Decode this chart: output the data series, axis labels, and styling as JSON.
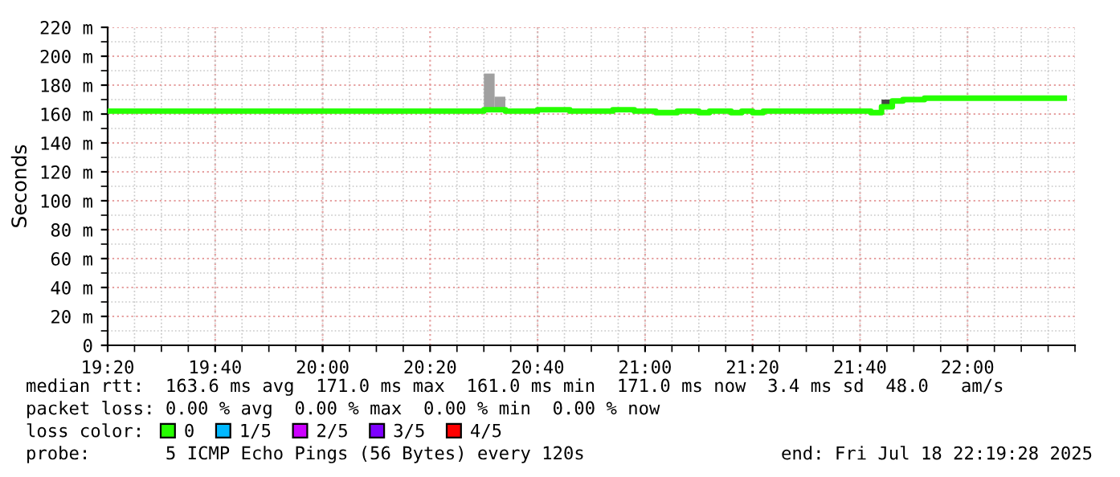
{
  "chart_data": {
    "type": "step",
    "ylabel": "Seconds",
    "legend_title": "loss color:",
    "xlim": [
      19.3333,
      22.3333
    ],
    "ylim": [
      0,
      220
    ],
    "xticks": [
      {
        "value": 19.3333,
        "label": "19:20"
      },
      {
        "value": 19.6667,
        "label": "19:40"
      },
      {
        "value": 20,
        "label": "20:00"
      },
      {
        "value": 20.3333,
        "label": "20:20"
      },
      {
        "value": 20.6667,
        "label": "20:40"
      },
      {
        "value": 21,
        "label": "21:00"
      },
      {
        "value": 21.3333,
        "label": "21:20"
      },
      {
        "value": 21.6667,
        "label": "21:40"
      },
      {
        "value": 22,
        "label": "22:00"
      }
    ],
    "yticks": [
      0,
      {
        "value": 20,
        "label": "20 m"
      },
      {
        "value": 40,
        "label": "40 m"
      },
      {
        "value": 60,
        "label": "60 m"
      },
      {
        "value": 80,
        "label": "80 m"
      },
      {
        "value": 100,
        "label": "100 m"
      },
      {
        "value": 120,
        "label": "120 m"
      },
      {
        "value": 140,
        "label": "140 m"
      },
      {
        "value": 160,
        "label": "160 m"
      },
      {
        "value": 180,
        "label": "180 m"
      },
      {
        "value": 200,
        "label": "200 m"
      },
      {
        "value": 220,
        "label": "220 m"
      }
    ],
    "grid": true,
    "legend": "bottom",
    "series": [
      {
        "type": "bar",
        "color": "#a0a0a0",
        "x": [
          20.5167,
          20.55
        ],
        "base": [
          163,
          162
        ],
        "values": [
          25,
          10
        ]
      },
      {
        "type": "bar",
        "color": "#444444",
        "x": [
          21.75
        ],
        "base": [
          165
        ],
        "values": [
          5
        ]
      },
      {
        "name": "0",
        "color": "#26ff00",
        "x": [
          19.3333,
          20.5,
          20.5667,
          20.6667,
          20.7667,
          20.9,
          20.9667,
          21.0333,
          21.1,
          21.1667,
          21.2,
          21.2667,
          21.3,
          21.3333,
          21.3667,
          21.7,
          21.7333,
          21.7667,
          21.8,
          21.8667,
          22.3
        ],
        "values": [
          162,
          163,
          162,
          163,
          162,
          163,
          162,
          161,
          162,
          161,
          162,
          161,
          162,
          161,
          162,
          161,
          165,
          169,
          170,
          171,
          171
        ]
      },
      {
        "name": "1/5",
        "color": "#00b8ff"
      },
      {
        "name": "2/5",
        "color": "#cc00ff"
      },
      {
        "name": "3/5",
        "color": "#7e00ff"
      },
      {
        "name": "4/5",
        "color": "#ff0000"
      }
    ],
    "annotations": [
      "median rtt:  163.6 ms avg  171.0 ms max  161.0 ms min  171.0 ms now  3.4 ms sd  48.0   am/s",
      "packet loss: 0.00 % avg  0.00 % max  0.00 % min  0.00 % now",
      "probe:       5 ICMP Echo Pings (56 Bytes) every 120s",
      "end: Fri Jul 18 22:19:28 2025"
    ]
  }
}
